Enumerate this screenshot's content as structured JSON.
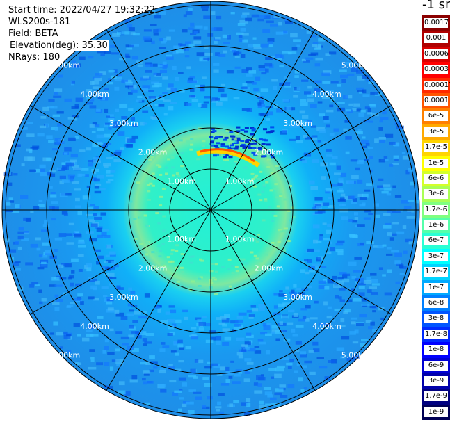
{
  "info": {
    "start_time": "Start time: 2022/04/27 19:32:22",
    "instrument": "WLS200s-181",
    "field": "Field: BETA",
    "elevation": "Elevation(deg): 35.30",
    "nrays": "NRays: 180"
  },
  "unit_label": "-1 sr",
  "range_labels": [
    "1.00km",
    "2.00km",
    "3.00km",
    "4.00km",
    "5.00km"
  ],
  "legend": [
    {
      "label": "0.0017",
      "color": "#8b0000"
    },
    {
      "label": "0.001",
      "color": "#b00000"
    },
    {
      "label": "0.0006",
      "color": "#d80000"
    },
    {
      "label": "0.0003",
      "color": "#ff0000"
    },
    {
      "label": "0.00017",
      "color": "#ff2a00"
    },
    {
      "label": "0.0001",
      "color": "#ff5500"
    },
    {
      "label": "6e-5",
      "color": "#ff8000"
    },
    {
      "label": "3e-5",
      "color": "#ffaa00"
    },
    {
      "label": "1.7e-5",
      "color": "#ffd400"
    },
    {
      "label": "1e-5",
      "color": "#ffff00"
    },
    {
      "label": "6e-6",
      "color": "#d4ff2a"
    },
    {
      "label": "3e-6",
      "color": "#aaff55"
    },
    {
      "label": "1.7e-6",
      "color": "#80ff80"
    },
    {
      "label": "1e-6",
      "color": "#55ffaa"
    },
    {
      "label": "6e-7",
      "color": "#2affd4"
    },
    {
      "label": "3e-7",
      "color": "#00ffff"
    },
    {
      "label": "1.7e-7",
      "color": "#00d4ff"
    },
    {
      "label": "1e-7",
      "color": "#00aaff"
    },
    {
      "label": "6e-8",
      "color": "#0080ff"
    },
    {
      "label": "3e-8",
      "color": "#0055ff"
    },
    {
      "label": "1.7e-8",
      "color": "#002aff"
    },
    {
      "label": "1e-8",
      "color": "#0000ff"
    },
    {
      "label": "6e-9",
      "color": "#0000d4"
    },
    {
      "label": "3e-9",
      "color": "#0000aa"
    },
    {
      "label": "1.7e-9",
      "color": "#000080"
    },
    {
      "label": "1e-9",
      "color": "#000055"
    }
  ]
}
